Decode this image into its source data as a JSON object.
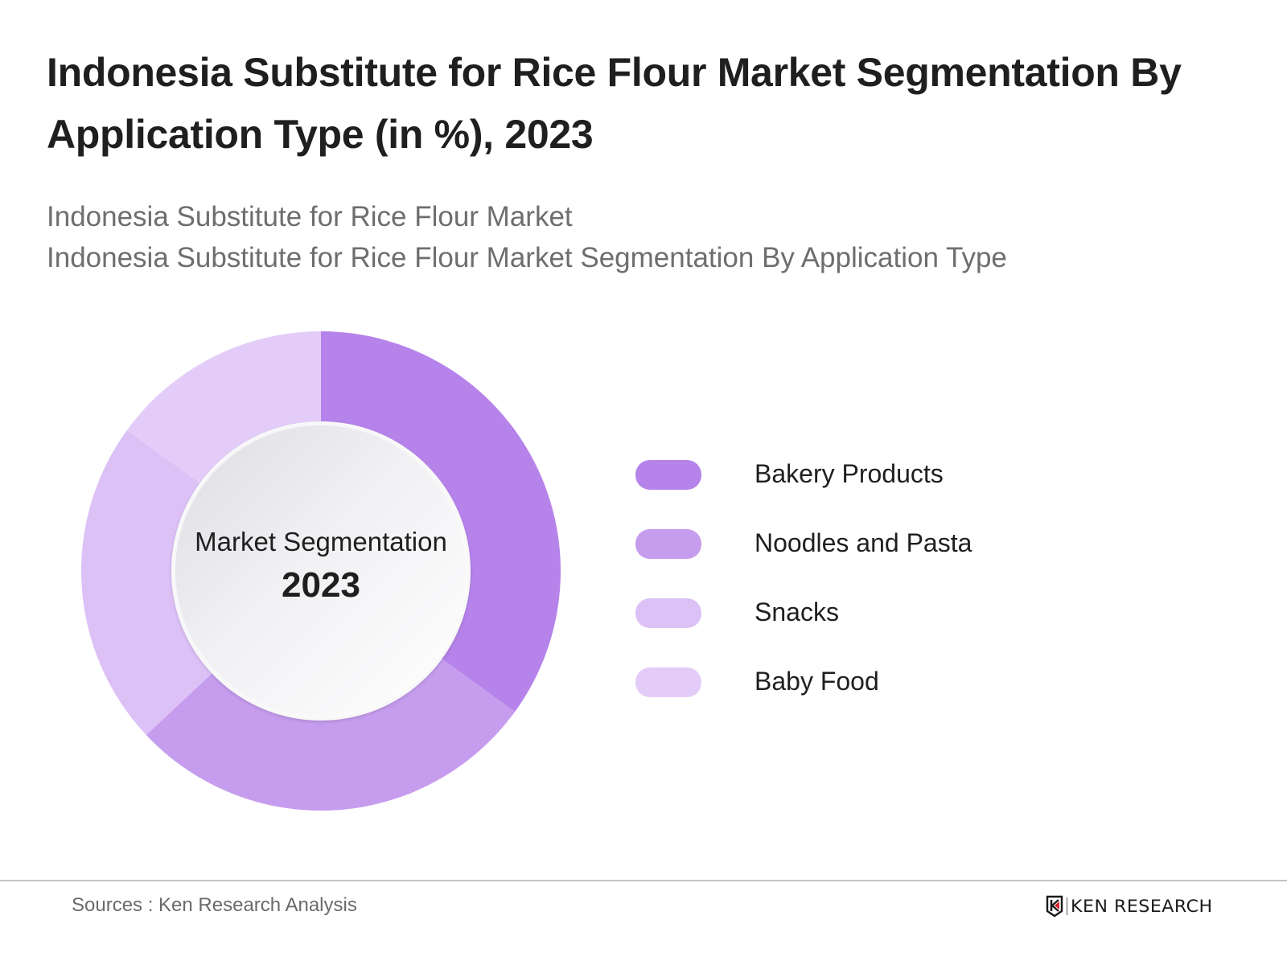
{
  "header": {
    "title": "Indonesia Substitute for Rice Flour Market Segmentation By Application Type (in %), 2023",
    "subtitle_lines": [
      "Indonesia Substitute for Rice Flour Market",
      "Indonesia Substitute for Rice Flour Market Segmentation By Application Type"
    ]
  },
  "donut": {
    "center_label": "Market Segmentation",
    "center_year": "2023"
  },
  "legend": {
    "items": [
      {
        "label": "Bakery Products",
        "color": "#B683EA"
      },
      {
        "label": "Noodles and Pasta",
        "color": "#C69DEE"
      },
      {
        "label": "Snacks",
        "color": "#DCC1F6"
      },
      {
        "label": "Baby Food",
        "color": "#E3CDF8"
      }
    ]
  },
  "footer": {
    "source": "Sources : Ken Research Analysis",
    "logo_text": "KEN RESEARCH"
  },
  "chart_data": {
    "type": "pie",
    "subtype": "donut",
    "title": "Indonesia Substitute for Rice Flour Market Segmentation By Application Type (in %), 2023",
    "subtitle": "Indonesia Substitute for Rice Flour Market / Indonesia Substitute for Rice Flour Market Segmentation By Application Type",
    "center_text": "Market Segmentation 2023",
    "categories": [
      "Bakery Products",
      "Noodles and Pasta",
      "Snacks",
      "Baby Food"
    ],
    "values": [
      35,
      28,
      22,
      15
    ],
    "unit": "%",
    "colors": [
      "#B683EA",
      "#C69DEE",
      "#DCC1F6",
      "#E3CDF8"
    ],
    "start_angle": "12 o'clock, clockwise",
    "legend_position": "right",
    "data_labels": false
  }
}
